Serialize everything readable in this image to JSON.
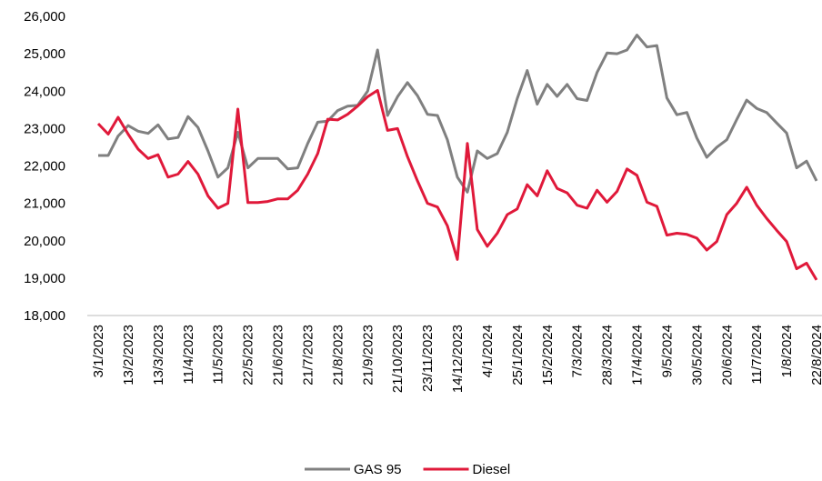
{
  "chart_data": {
    "type": "line",
    "categories": [
      "3/1/2023",
      null,
      null,
      "13/2/2023",
      null,
      null,
      "13/3/2023",
      null,
      null,
      "11/4/2023",
      null,
      null,
      "11/5/2023",
      null,
      null,
      "22/5/2023",
      null,
      null,
      "21/6/2023",
      null,
      null,
      "21/7/2023",
      null,
      null,
      "21/8/2023",
      null,
      null,
      "21/9/2023",
      null,
      null,
      "21/10/2023",
      null,
      null,
      "23/11/2023",
      null,
      null,
      "14/12/2023",
      null,
      null,
      "4/1/2024",
      null,
      null,
      "25/1/2024",
      null,
      null,
      "15/2/2024",
      null,
      null,
      "7/3/2024",
      null,
      null,
      "28/3/2024",
      null,
      null,
      "17/4/2024",
      null,
      null,
      "9/5/2024",
      null,
      null,
      "30/5/2024",
      null,
      null,
      "20/6/2024",
      null,
      null,
      "11/7/2024",
      null,
      null,
      "1/8/2024",
      null,
      null,
      "22/8/2024"
    ],
    "series": [
      {
        "name": "GAS 95",
        "color": "#808080",
        "values": [
          22280,
          22280,
          22800,
          23080,
          22930,
          22870,
          23100,
          22720,
          22760,
          23320,
          23030,
          22400,
          21700,
          21950,
          22900,
          21950,
          22200,
          22200,
          22200,
          21920,
          21950,
          22600,
          23170,
          23200,
          23480,
          23600,
          23620,
          24000,
          25100,
          23350,
          23850,
          24230,
          23880,
          23380,
          23350,
          22700,
          21700,
          21300,
          22400,
          22200,
          22330,
          22900,
          23800,
          24550,
          23650,
          24180,
          23860,
          24180,
          23800,
          23750,
          24500,
          25020,
          25000,
          25100,
          25500,
          25180,
          25220,
          23820,
          23370,
          23430,
          22750,
          22230,
          22500,
          22700,
          23240,
          23760,
          23540,
          23430,
          23150,
          22880,
          21950,
          22130,
          21600
        ]
      },
      {
        "name": "Diesel",
        "color": "#e0193a",
        "values": [
          23130,
          22850,
          23300,
          22850,
          22450,
          22200,
          22300,
          21700,
          21780,
          22120,
          21780,
          21200,
          20870,
          21000,
          23520,
          21020,
          21020,
          21050,
          21120,
          21120,
          21350,
          21780,
          22330,
          23250,
          23230,
          23380,
          23600,
          23850,
          24020,
          22950,
          23000,
          22250,
          21600,
          21000,
          20900,
          20400,
          19500,
          22600,
          20300,
          19850,
          20200,
          20700,
          20850,
          21500,
          21200,
          21870,
          21400,
          21280,
          20950,
          20870,
          21350,
          21030,
          21320,
          21920,
          21750,
          21030,
          20920,
          20150,
          20200,
          20170,
          20070,
          19750,
          19980,
          20700,
          21000,
          21430,
          20950,
          20600,
          20280,
          19980,
          19250,
          19400,
          18950
        ]
      }
    ],
    "ylim": [
      18000,
      26000
    ],
    "yticks": [
      {
        "value": 18000,
        "label": "18,000"
      },
      {
        "value": 19000,
        "label": "19,000"
      },
      {
        "value": 20000,
        "label": "20,000"
      },
      {
        "value": 21000,
        "label": "21,000"
      },
      {
        "value": 22000,
        "label": "22,000"
      },
      {
        "value": 23000,
        "label": "23,000"
      },
      {
        "value": 24000,
        "label": "24,000"
      },
      {
        "value": 25000,
        "label": "25,000"
      },
      {
        "value": 26000,
        "label": "26,000"
      }
    ],
    "grid": false,
    "legend": "bottom"
  }
}
